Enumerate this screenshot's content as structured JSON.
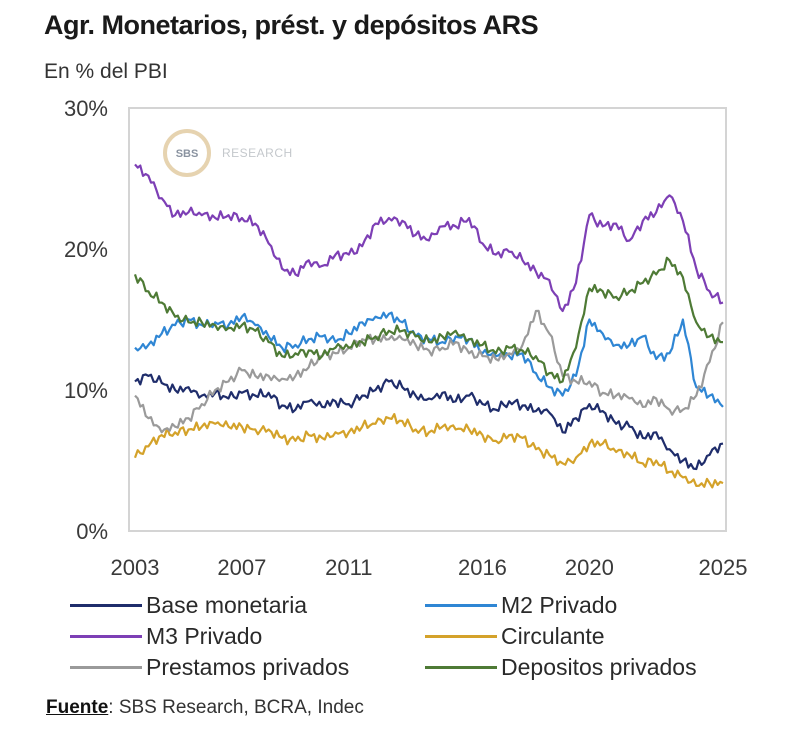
{
  "header": {
    "title": "Agr. Monetarios, prést. y depósitos ARS",
    "subtitle": "En % del PBI"
  },
  "watermark": {
    "logo_text": "SBS",
    "text": "RESEARCH"
  },
  "source": {
    "label": "Fuente",
    "text": ": SBS Research, BCRA, Indec"
  },
  "chart_data": {
    "type": "line",
    "title": "Agr. Monetarios, prést. y depósitos ARS",
    "subtitle": "En % del PBI",
    "xlabel": "",
    "ylabel": "",
    "xlim": [
      2003,
      2025
    ],
    "ylim": [
      0,
      30
    ],
    "x_ticks": [
      2003,
      2007,
      2011,
      2016,
      2020,
      2025
    ],
    "x_tick_labels": [
      "2003",
      "2007",
      "2011",
      "2016",
      "2020",
      "2025"
    ],
    "y_ticks": [
      0,
      10,
      20,
      30
    ],
    "y_tick_labels": [
      "0%",
      "10%",
      "20%",
      "30%"
    ],
    "grid": false,
    "legend_position": "bottom",
    "x": [
      2003.0,
      2003.5,
      2004.0,
      2004.5,
      2005.0,
      2005.5,
      2006.0,
      2006.5,
      2007.0,
      2007.5,
      2008.0,
      2008.5,
      2009.0,
      2009.5,
      2010.0,
      2010.5,
      2011.0,
      2011.5,
      2012.0,
      2012.5,
      2013.0,
      2013.5,
      2014.0,
      2014.5,
      2015.0,
      2015.5,
      2016.0,
      2016.5,
      2017.0,
      2017.5,
      2018.0,
      2018.5,
      2019.0,
      2019.5,
      2020.0,
      2020.5,
      2021.0,
      2021.5,
      2022.0,
      2022.5,
      2023.0,
      2023.5,
      2024.0,
      2024.5,
      2025.0
    ],
    "series": [
      {
        "name": "Base monetaria",
        "color": "#1f2d6b",
        "values": [
          10.6,
          11.0,
          10.5,
          10.0,
          10.2,
          9.6,
          9.8,
          9.4,
          9.8,
          9.6,
          9.8,
          8.9,
          8.6,
          9.2,
          8.8,
          9.2,
          9.0,
          9.6,
          10.0,
          10.6,
          10.2,
          9.6,
          9.4,
          9.8,
          9.2,
          9.6,
          9.0,
          8.6,
          9.2,
          8.9,
          8.5,
          8.4,
          7.0,
          8.0,
          9.0,
          8.5,
          7.6,
          7.4,
          6.6,
          7.0,
          5.8,
          5.0,
          4.4,
          5.4,
          6.2
        ]
      },
      {
        "name": "M2 Privado",
        "color": "#2f86d4",
        "values": [
          13.0,
          13.2,
          14.0,
          14.6,
          15.0,
          14.6,
          14.8,
          14.6,
          15.2,
          14.6,
          13.8,
          13.0,
          13.2,
          13.6,
          13.8,
          13.4,
          14.0,
          14.8,
          15.2,
          15.4,
          14.8,
          13.8,
          13.6,
          13.4,
          13.8,
          13.6,
          12.6,
          12.4,
          12.4,
          12.6,
          11.2,
          10.2,
          9.6,
          11.0,
          15.0,
          14.0,
          13.2,
          13.2,
          13.8,
          12.2,
          12.6,
          15.0,
          10.2,
          9.6,
          8.8
        ]
      },
      {
        "name": "M3 Privado",
        "color": "#7d3fb5",
        "values": [
          26.0,
          25.2,
          23.6,
          22.4,
          22.6,
          22.4,
          22.2,
          22.4,
          22.2,
          21.8,
          20.4,
          18.6,
          18.2,
          19.2,
          18.8,
          19.6,
          19.6,
          20.2,
          21.8,
          22.2,
          22.0,
          21.0,
          20.6,
          21.6,
          21.6,
          22.2,
          20.4,
          19.6,
          19.8,
          19.2,
          18.4,
          17.8,
          15.6,
          17.6,
          22.4,
          21.6,
          21.8,
          20.6,
          22.0,
          22.6,
          23.8,
          22.0,
          18.6,
          17.0,
          16.2
        ]
      },
      {
        "name": "Circulante",
        "color": "#d4a22a",
        "values": [
          5.2,
          6.0,
          6.8,
          7.0,
          7.2,
          7.4,
          7.6,
          7.4,
          7.4,
          7.2,
          7.2,
          6.6,
          6.4,
          6.8,
          6.6,
          7.0,
          7.0,
          7.4,
          7.6,
          8.0,
          7.8,
          7.2,
          7.0,
          7.4,
          7.2,
          7.2,
          6.8,
          6.4,
          6.8,
          6.6,
          5.8,
          5.4,
          4.8,
          5.2,
          6.2,
          6.2,
          5.6,
          5.4,
          4.8,
          5.0,
          4.2,
          3.8,
          3.2,
          3.4,
          3.4
        ]
      },
      {
        "name": "Prestamos privados",
        "color": "#9a9a9a",
        "values": [
          9.6,
          8.0,
          7.0,
          7.4,
          8.0,
          9.0,
          10.0,
          10.6,
          11.4,
          11.0,
          11.0,
          10.8,
          11.0,
          11.6,
          12.4,
          12.6,
          13.0,
          13.6,
          13.6,
          13.6,
          13.6,
          13.2,
          12.8,
          13.0,
          13.4,
          12.6,
          12.4,
          12.2,
          12.6,
          13.2,
          15.6,
          14.0,
          11.0,
          10.6,
          10.6,
          9.8,
          9.6,
          9.4,
          8.8,
          9.4,
          8.6,
          8.6,
          9.6,
          12.0,
          14.8
        ]
      },
      {
        "name": "Depositos privados",
        "color": "#4e7a35",
        "values": [
          18.2,
          17.0,
          16.2,
          15.2,
          14.8,
          14.8,
          14.6,
          14.4,
          14.6,
          14.2,
          13.4,
          12.4,
          12.6,
          12.8,
          12.4,
          13.0,
          13.0,
          13.4,
          13.8,
          14.2,
          14.2,
          13.8,
          13.4,
          13.8,
          14.2,
          13.6,
          13.2,
          12.6,
          13.0,
          12.8,
          12.4,
          11.2,
          10.6,
          13.0,
          17.2,
          17.0,
          16.6,
          17.0,
          17.6,
          18.2,
          19.2,
          18.0,
          14.8,
          13.8,
          13.4
        ]
      }
    ]
  }
}
